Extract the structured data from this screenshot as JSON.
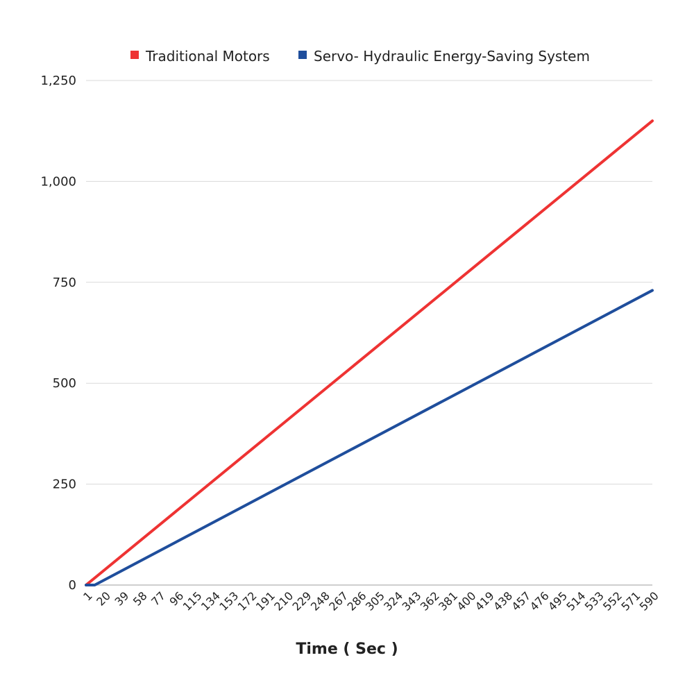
{
  "chart_data": {
    "type": "line",
    "title": "",
    "xlabel": "Time ( Sec )",
    "ylabel": "",
    "x_tick_labels": [
      "1",
      "20",
      "39",
      "58",
      "77",
      "96",
      "115",
      "134",
      "153",
      "172",
      "191",
      "210",
      "229",
      "248",
      "267",
      "286",
      "305",
      "324",
      "343",
      "362",
      "381",
      "400",
      "419",
      "438",
      "457",
      "476",
      "495",
      "514",
      "533",
      "552",
      "571",
      "590"
    ],
    "x_range": [
      1,
      590
    ],
    "y_tick_labels": [
      "0",
      "250",
      "500",
      "750",
      "1,000",
      "1,250"
    ],
    "y_ticks": [
      0,
      250,
      500,
      750,
      1000,
      1250
    ],
    "ylim": [
      0,
      1250
    ],
    "grid": "horizontal",
    "legend_position": "top",
    "series": [
      {
        "name": "Traditional Motors",
        "color": "#ee3333",
        "x": [
          1,
          590
        ],
        "y": [
          0,
          1150
        ]
      },
      {
        "name": "Servo- Hydraulic Energy-Saving System",
        "color": "#1f4e9c",
        "x": [
          1,
          10,
          590
        ],
        "y": [
          0,
          0,
          730
        ]
      }
    ]
  }
}
